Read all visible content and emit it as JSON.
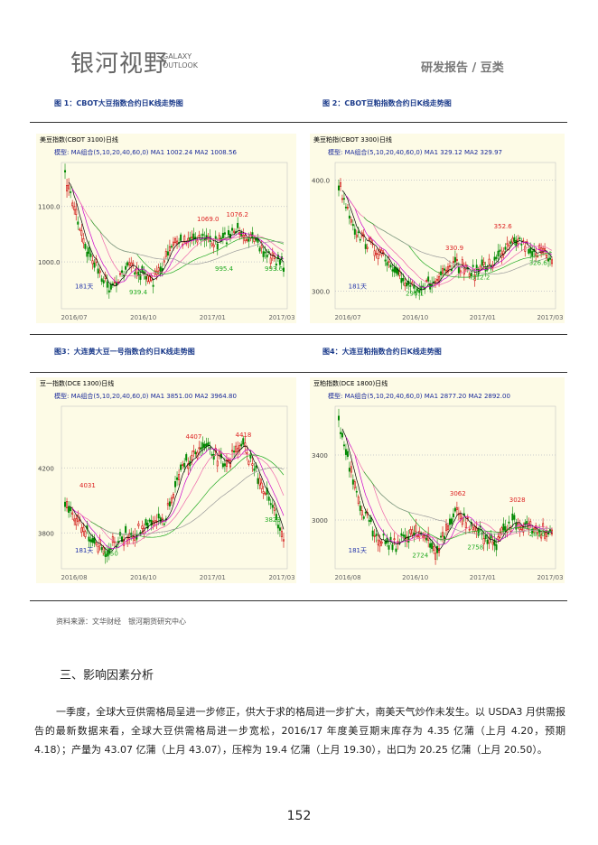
{
  "header": {
    "logo": "银河视野",
    "logo_en_1": "GALAXY",
    "logo_en_2": "OUTLOOK",
    "section": "研发报告 / 豆类"
  },
  "figures": [
    {
      "caption": "图 1：CBOT大豆指数合约日K线走势图",
      "chart": {
        "title": "美豆指数(CBOT 3100)日线",
        "ma": "模型: MA组合(5,10,20,40,60,0)  MA1 1002.24   MA2 1008.56",
        "y_labels": [
          "1100.0",
          "1000.0"
        ],
        "x_labels": [
          "2016/07",
          "2016/10",
          "2017/01",
          "2017/03"
        ],
        "annotations": [
          {
            "text": "1069.0",
            "color": "#d22"
          },
          {
            "text": "1076.2",
            "color": "#d22"
          },
          {
            "text": "995.4",
            "color": "#2a2"
          },
          {
            "text": "993.6",
            "color": "#2a2"
          },
          {
            "text": "939.4",
            "color": "#2a2"
          },
          {
            "text": "181天",
            "color": "#2233aa"
          }
        ]
      }
    },
    {
      "caption": "图 2：CBOT豆粕指数合约日K线走势图",
      "chart": {
        "title": "美豆粕指(CBOT 3300)日线",
        "ma": "模型: MA组合(5,10,20,40,60,0)  MA1 329.12   MA2 329.97",
        "y_labels": [
          "400.0",
          "300.0"
        ],
        "x_labels": [
          "2016/07",
          "2016/10",
          "2017/01",
          "2017/03"
        ],
        "annotations": [
          {
            "text": "352.6",
            "color": "#d22"
          },
          {
            "text": "330.9",
            "color": "#d22"
          },
          {
            "text": "326.6",
            "color": "#2a2"
          },
          {
            "text": "312.2",
            "color": "#2a2"
          },
          {
            "text": "296.1",
            "color": "#2a2"
          },
          {
            "text": "181天",
            "color": "#2233aa"
          }
        ]
      }
    },
    {
      "caption": "图3：大连黄大豆一号指数合约日K线走势图",
      "chart": {
        "title": "豆一指数(DCE 1300)日线",
        "ma": "模型: MA组合(5,10,20,40,60,0)  MA1 3851.00   MA2 3964.80",
        "y_labels": [
          "4200",
          "3800"
        ],
        "x_labels": [
          "2016/08",
          "2016/10",
          "2017/01",
          "2017/03"
        ],
        "annotations": [
          {
            "text": "4407",
            "color": "#d22"
          },
          {
            "text": "4418",
            "color": "#d22"
          },
          {
            "text": "4031",
            "color": "#d22"
          },
          {
            "text": "3823",
            "color": "#2a2"
          },
          {
            "text": "3550",
            "color": "#2a2"
          },
          {
            "text": "181天",
            "color": "#2233aa"
          }
        ]
      }
    },
    {
      "caption": "图4：大连豆粕指数合约日K线走势图",
      "chart": {
        "title": "豆粕指数(DCE 1800)日线",
        "ma": "模型: MA组合(5,10,20,40,60,0)  MA1 2877.20   MA2 2892.00",
        "y_labels": [
          "3400",
          "3000"
        ],
        "x_labels": [
          "2016/08",
          "2016/10",
          "2017/01",
          "2017/03"
        ],
        "annotations": [
          {
            "text": "3062",
            "color": "#d22"
          },
          {
            "text": "3028",
            "color": "#d22"
          },
          {
            "text": "2836",
            "color": "#2a2"
          },
          {
            "text": "2758",
            "color": "#2a2"
          },
          {
            "text": "2724",
            "color": "#2a2"
          },
          {
            "text": "181天",
            "color": "#2233aa"
          }
        ]
      }
    }
  ],
  "source": "资料来源：文华财经　银河期货研究中心",
  "section_title": "三、影响因素分析",
  "paragraph": "一季度，全球大豆供需格局呈进一步修正，供大于求的格局进一步扩大，南美天气炒作未发生。以 USDA3 月供需报告的最新数据来看，全球大豆供需格局进一步宽松，2016/17 年度美豆期末库存为 4.35 亿蒲（上月 4.20，预期 4.18）；产量为 43.07 亿蒲（上月 43.07），压榨为 19.4 亿蒲（上月 19.30），出口为 20.25 亿蒲（上月 20.50）。",
  "page_number": "152"
}
